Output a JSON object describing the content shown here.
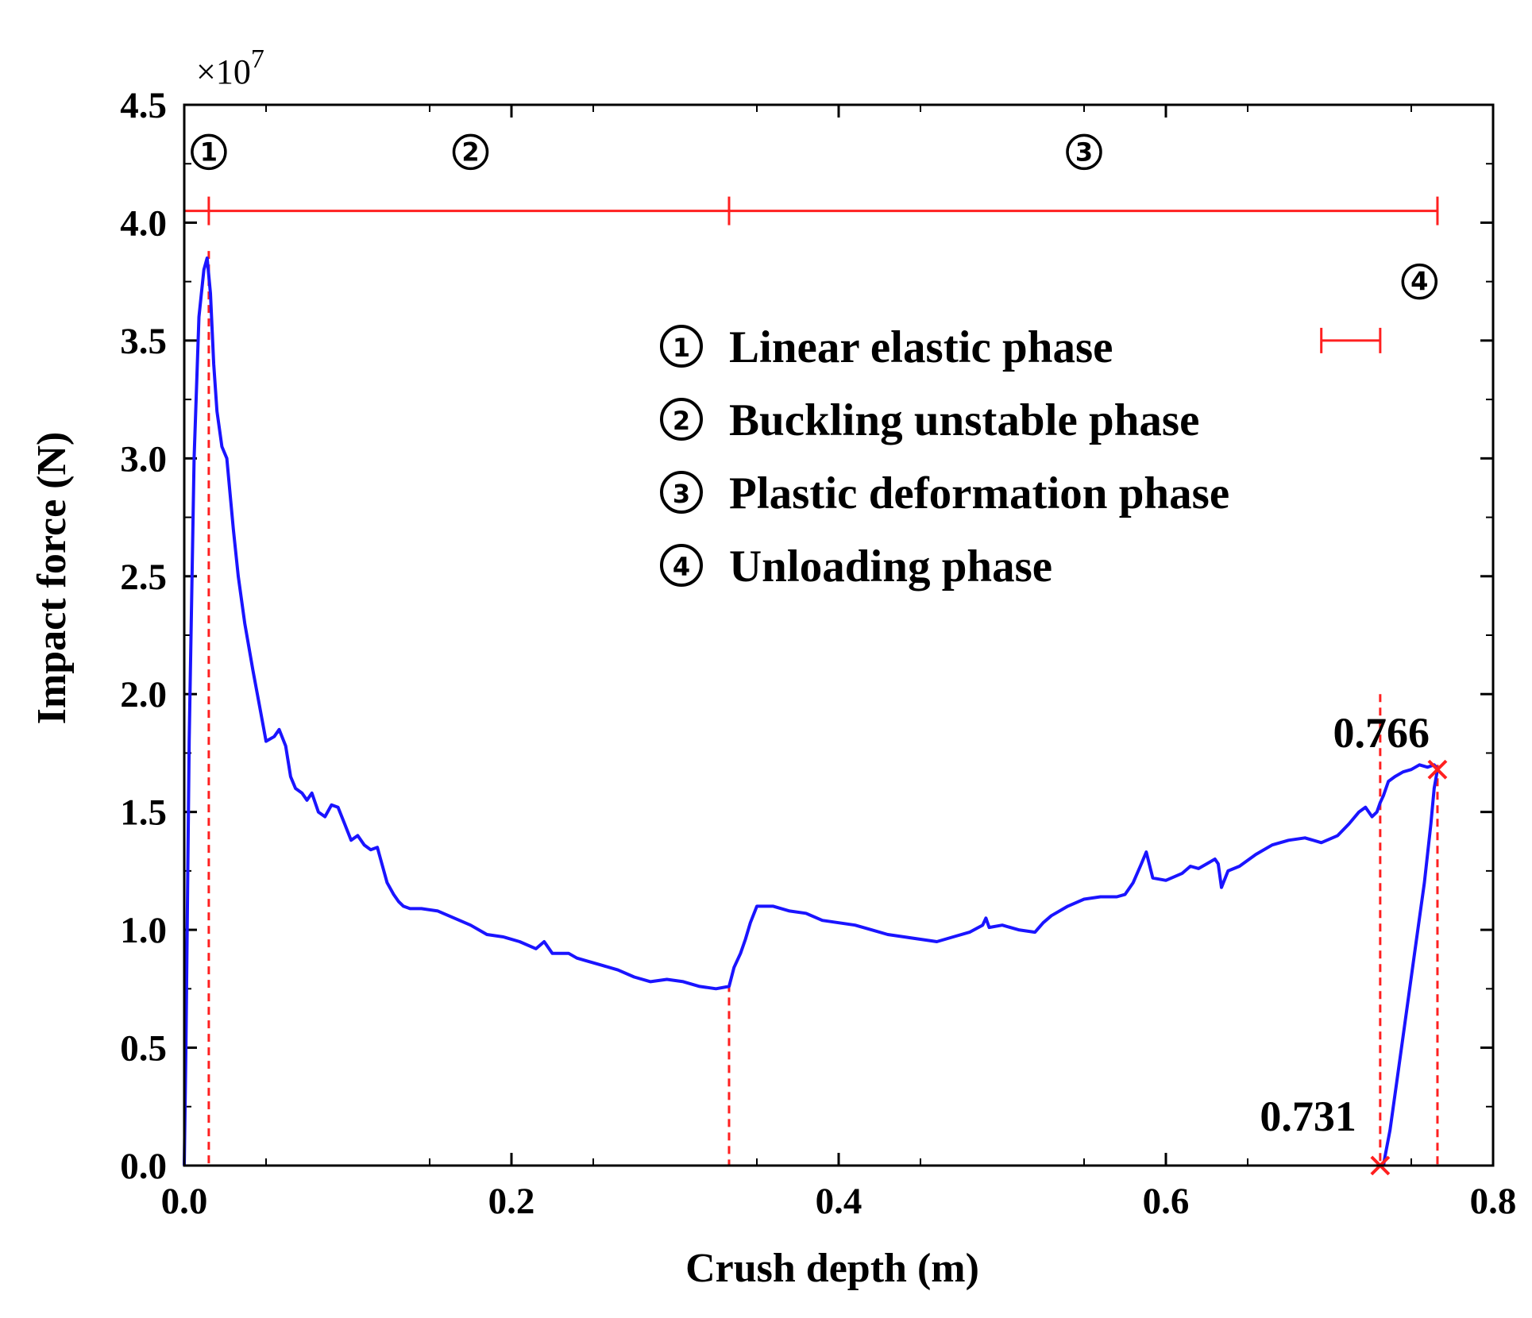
{
  "chart_data": {
    "type": "line",
    "xlabel": "Crush depth (m)",
    "ylabel": "Impact force (N)",
    "y_multiplier": {
      "base": "×10",
      "exp": "7"
    },
    "xlim": [
      0,
      0.8
    ],
    "ylim": [
      0,
      4.5
    ],
    "x_ticks": [
      0.0,
      0.2,
      0.4,
      0.6,
      0.8
    ],
    "x_tick_labels": [
      "0.0",
      "0.2",
      "0.4",
      "0.6",
      "0.8"
    ],
    "y_ticks": [
      0.0,
      0.5,
      1.0,
      1.5,
      2.0,
      2.5,
      3.0,
      3.5,
      4.0,
      4.5
    ],
    "y_tick_labels": [
      "0.0",
      "0.5",
      "1.0",
      "1.5",
      "2.0",
      "2.5",
      "3.0",
      "3.5",
      "4.0",
      "4.5"
    ],
    "colors": {
      "curve": "#1a14ff",
      "annotation": "#ff2020",
      "axis": "#000000"
    },
    "series": [
      {
        "name": "Impact force",
        "x": [
          0.0,
          0.001,
          0.003,
          0.006,
          0.009,
          0.012,
          0.014,
          0.016,
          0.018,
          0.02,
          0.023,
          0.026,
          0.03,
          0.033,
          0.037,
          0.042,
          0.046,
          0.05,
          0.055,
          0.058,
          0.062,
          0.065,
          0.068,
          0.072,
          0.075,
          0.078,
          0.082,
          0.086,
          0.09,
          0.094,
          0.098,
          0.102,
          0.106,
          0.11,
          0.114,
          0.118,
          0.12,
          0.124,
          0.128,
          0.131,
          0.134,
          0.138,
          0.145,
          0.155,
          0.165,
          0.175,
          0.185,
          0.195,
          0.205,
          0.215,
          0.22,
          0.225,
          0.235,
          0.24,
          0.245,
          0.255,
          0.265,
          0.275,
          0.285,
          0.295,
          0.305,
          0.315,
          0.325,
          0.333,
          0.336,
          0.34,
          0.343,
          0.346,
          0.35,
          0.353,
          0.36,
          0.37,
          0.38,
          0.39,
          0.4,
          0.41,
          0.42,
          0.43,
          0.44,
          0.45,
          0.46,
          0.47,
          0.48,
          0.488,
          0.49,
          0.492,
          0.5,
          0.51,
          0.52,
          0.525,
          0.53,
          0.54,
          0.55,
          0.56,
          0.57,
          0.575,
          0.58,
          0.585,
          0.588,
          0.592,
          0.6,
          0.61,
          0.615,
          0.62,
          0.63,
          0.632,
          0.634,
          0.638,
          0.645,
          0.655,
          0.665,
          0.675,
          0.685,
          0.695,
          0.705,
          0.712,
          0.718,
          0.722,
          0.726,
          0.729,
          0.731,
          0.733,
          0.736,
          0.74,
          0.745,
          0.75,
          0.755,
          0.76,
          0.764,
          0.766,
          0.764,
          0.762,
          0.758,
          0.752,
          0.746,
          0.741,
          0.737,
          0.734,
          0.733
        ],
        "values": [
          0.0,
          0.5,
          1.8,
          3.0,
          3.6,
          3.8,
          3.85,
          3.7,
          3.4,
          3.2,
          3.05,
          3.0,
          2.7,
          2.5,
          2.3,
          2.1,
          1.95,
          1.8,
          1.82,
          1.85,
          1.78,
          1.65,
          1.6,
          1.58,
          1.55,
          1.58,
          1.5,
          1.48,
          1.53,
          1.52,
          1.45,
          1.38,
          1.4,
          1.36,
          1.34,
          1.35,
          1.3,
          1.2,
          1.15,
          1.12,
          1.1,
          1.09,
          1.09,
          1.08,
          1.05,
          1.02,
          0.98,
          0.97,
          0.95,
          0.92,
          0.95,
          0.9,
          0.9,
          0.88,
          0.87,
          0.85,
          0.83,
          0.8,
          0.78,
          0.79,
          0.78,
          0.76,
          0.75,
          0.76,
          0.84,
          0.9,
          0.96,
          1.03,
          1.1,
          1.1,
          1.1,
          1.08,
          1.07,
          1.04,
          1.03,
          1.02,
          1.0,
          0.98,
          0.97,
          0.96,
          0.95,
          0.97,
          0.99,
          1.02,
          1.05,
          1.01,
          1.02,
          1.0,
          0.99,
          1.03,
          1.06,
          1.1,
          1.13,
          1.14,
          1.14,
          1.15,
          1.2,
          1.28,
          1.33,
          1.22,
          1.21,
          1.24,
          1.27,
          1.26,
          1.3,
          1.28,
          1.18,
          1.25,
          1.27,
          1.32,
          1.36,
          1.38,
          1.39,
          1.37,
          1.4,
          1.45,
          1.5,
          1.52,
          1.48,
          1.5,
          1.54,
          1.57,
          1.63,
          1.65,
          1.67,
          1.68,
          1.7,
          1.69,
          1.7,
          1.68,
          1.6,
          1.45,
          1.2,
          0.9,
          0.6,
          0.35,
          0.15,
          0.04,
          0.0
        ]
      }
    ],
    "phases": {
      "labels": [
        "①",
        "②",
        "③",
        "④"
      ],
      "boundaries": [
        0.0,
        0.015,
        0.333,
        0.766
      ],
      "bar_y": 4.05,
      "phase4_bar": {
        "x_start": 0.695,
        "x_end": 0.731,
        "y": 3.5
      },
      "label_positions": [
        {
          "x": 0.015,
          "y": 4.3
        },
        {
          "x": 0.175,
          "y": 4.3
        },
        {
          "x": 0.55,
          "y": 4.3
        },
        {
          "x": 0.755,
          "y": 3.75
        }
      ],
      "dashed_lines": [
        {
          "x": 0.015,
          "y_top": 3.88
        },
        {
          "x": 0.333,
          "y_top": 0.77
        },
        {
          "x": 0.731,
          "y_top": 2.0
        },
        {
          "x": 0.766,
          "y_top": 1.7
        }
      ]
    },
    "legend": [
      {
        "num": "①",
        "label": "Linear elastic phase"
      },
      {
        "num": "②",
        "label": "Buckling unstable phase"
      },
      {
        "num": "③",
        "label": "Plastic deformation phase"
      },
      {
        "num": "④",
        "label": "Unloading phase"
      }
    ],
    "annotations": [
      {
        "text": "0.766",
        "x": 0.766,
        "y": 1.68
      },
      {
        "text": "0.731",
        "x": 0.731,
        "y": 0.0
      }
    ]
  }
}
